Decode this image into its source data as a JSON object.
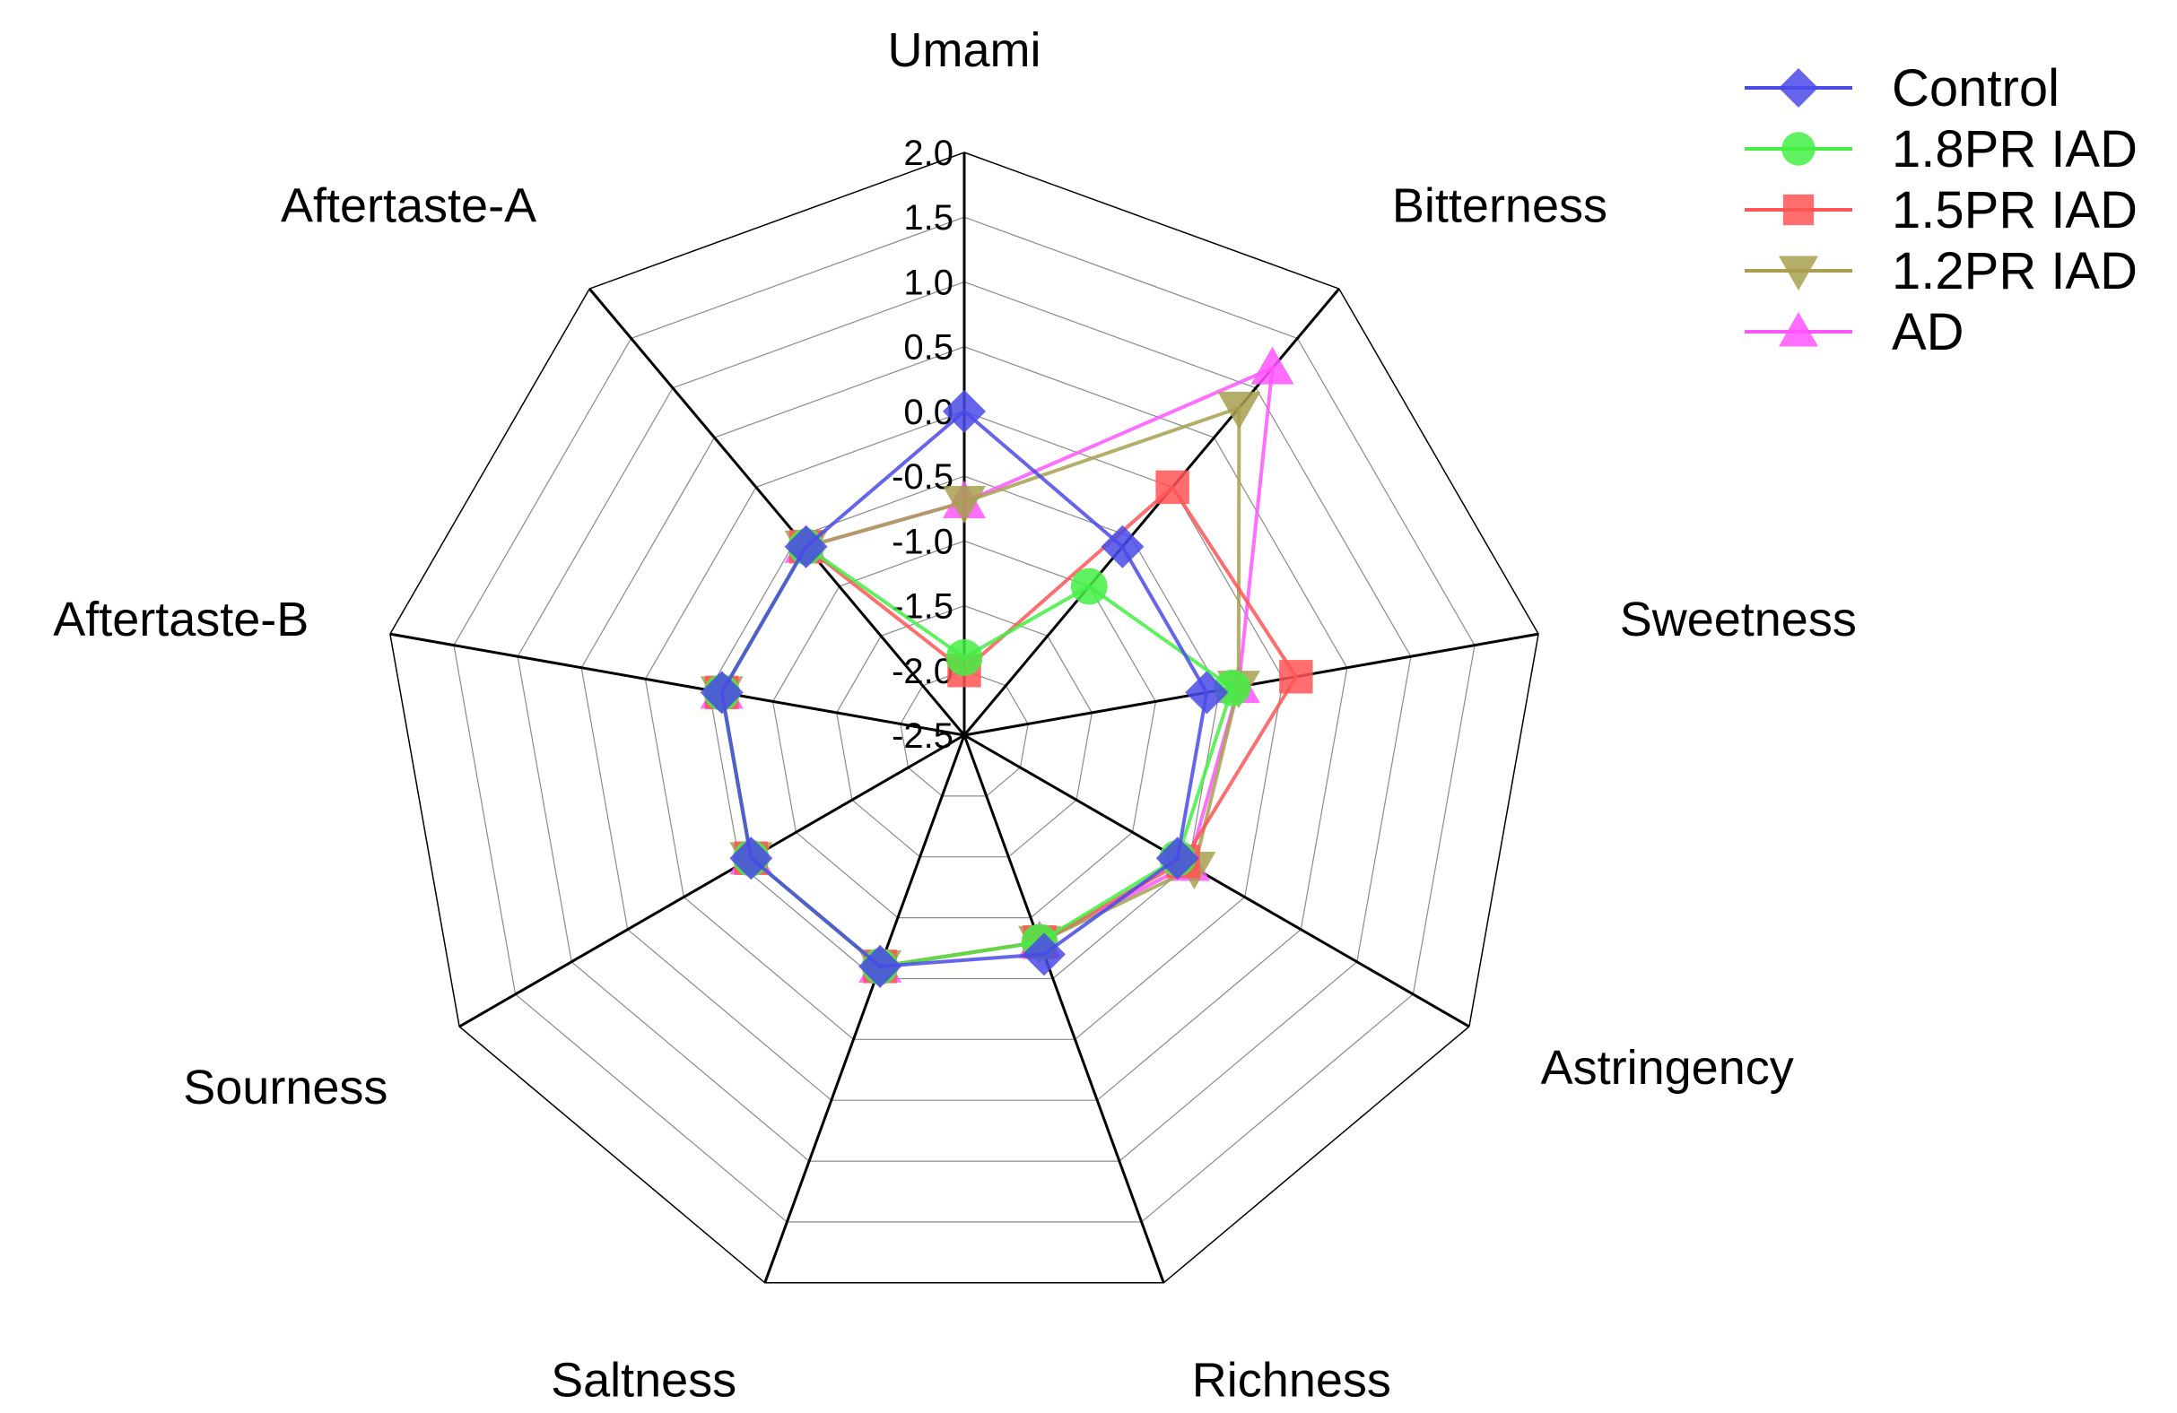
{
  "chart_data": {
    "type": "radar",
    "title": "",
    "axes": [
      "Umami",
      "Bitterness",
      "Sweetness",
      "Astringency",
      "Richness",
      "Saltness",
      "Sourness",
      "Aftertaste-B",
      "Aftertaste-A"
    ],
    "rlim": [
      -2.5,
      2.0
    ],
    "ticks": [
      "2.0",
      "1.5",
      "1.0",
      "0.5",
      "0.0",
      "-0.5",
      "-1.0",
      "-1.5",
      "-2.0",
      "-2.5"
    ],
    "grid": true,
    "legend_position": "top-right",
    "series": [
      {
        "name": "Control",
        "marker": "diamond",
        "color": "#4a4ae8",
        "values": [
          0.0,
          -0.6,
          -0.6,
          -0.6,
          -0.7,
          -0.6,
          -0.6,
          -0.6,
          -0.6
        ]
      },
      {
        "name": "1.8PR IAD",
        "marker": "circle",
        "color": "#44ee44",
        "values": [
          -1.9,
          -1.0,
          -0.4,
          -0.6,
          -0.8,
          -0.6,
          -0.6,
          -0.6,
          -0.6
        ]
      },
      {
        "name": "1.5PR IAD",
        "marker": "square",
        "color": "#ff5555",
        "values": [
          -2.0,
          0.0,
          0.1,
          -0.55,
          -0.8,
          -0.6,
          -0.6,
          -0.6,
          -0.6
        ]
      },
      {
        "name": "1.2PR IAD",
        "marker": "triangle-down",
        "color": "#a8a050",
        "values": [
          -0.7,
          0.8,
          -0.35,
          -0.45,
          -0.8,
          -0.6,
          -0.6,
          -0.6,
          -0.6
        ]
      },
      {
        "name": "AD",
        "marker": "triangle-up",
        "color": "#ff55ff",
        "values": [
          -0.7,
          1.2,
          -0.35,
          -0.5,
          -0.8,
          -0.6,
          -0.6,
          -0.6,
          -0.6
        ]
      }
    ]
  }
}
